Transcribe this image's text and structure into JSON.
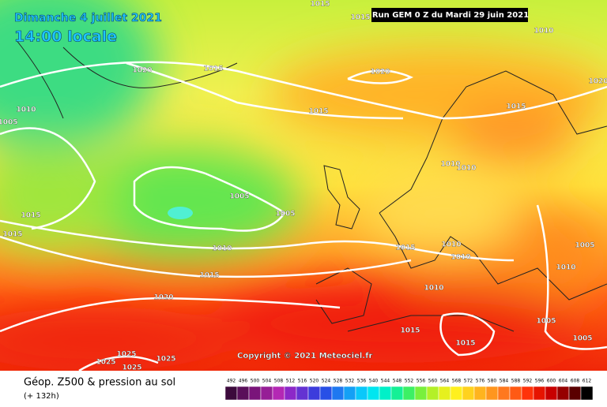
{
  "header": {
    "date": "Dimanche 4 juillet 2021",
    "time": "14:00 locale",
    "run": "Run GEM 0 Z du Mardi 29 juin 2021"
  },
  "isobars": [
    "1015",
    "1015",
    "1010",
    "1020",
    "1015",
    "1020",
    "1020",
    "1010",
    "1005",
    "1015",
    "1015",
    "1010",
    "1010",
    "1005",
    "1005",
    "1015",
    "1015",
    "1010",
    "1015",
    "1010",
    "1010",
    "1005",
    "1010",
    "1015",
    "1010",
    "1020",
    "1005",
    "1015",
    "1015",
    "1005",
    "1025",
    "1025",
    "1025",
    "1025"
  ],
  "copyright": "Copyright © 2021 Meteociel.fr",
  "legend": {
    "title": "Géop. Z500 & pression au sol",
    "lead": "(+ 132h)",
    "scale": {
      "labels": [
        492,
        496,
        500,
        504,
        508,
        512,
        516,
        520,
        524,
        528,
        532,
        536,
        540,
        544,
        548,
        552,
        556,
        560,
        564,
        568,
        572,
        576,
        580,
        584,
        588,
        592,
        596,
        600,
        604,
        608,
        612
      ],
      "colors": [
        "#3c0a3c",
        "#5a0f5a",
        "#7a147a",
        "#961e96",
        "#b428b4",
        "#8c28c8",
        "#6432d2",
        "#3c3cdc",
        "#2850e6",
        "#1e78f0",
        "#14a0f5",
        "#0ac8fa",
        "#00e6f0",
        "#00f0c8",
        "#14f096",
        "#3cf064",
        "#78f03c",
        "#b4f028",
        "#e6f01e",
        "#fff01e",
        "#ffd21e",
        "#ffb41e",
        "#ff961e",
        "#ff781e",
        "#ff5a14",
        "#ff320a",
        "#e61400",
        "#c80000",
        "#960000",
        "#5a0000",
        "#000000"
      ]
    }
  }
}
